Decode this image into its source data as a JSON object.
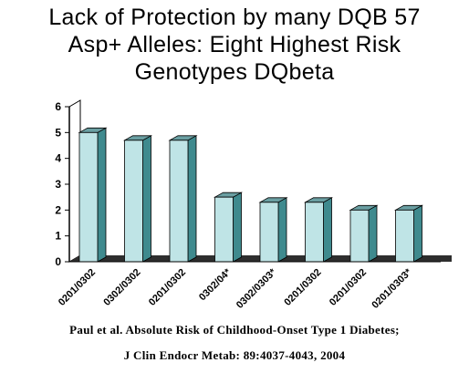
{
  "chart_data": {
    "type": "bar",
    "title_lines": [
      "Lack of Protection by many DQB 57",
      "Asp+ Alleles: Eight Highest Risk",
      "Genotypes DQbeta"
    ],
    "categories": [
      "0201/0302",
      "0302/0302",
      "0201/0302",
      "0302/04*",
      "0302/0303*",
      "0201/0302",
      "0201/0302",
      "0201/0303*"
    ],
    "values": [
      5.0,
      4.7,
      4.7,
      2.5,
      2.3,
      2.3,
      2.0,
      2.0
    ],
    "ylim": [
      0,
      6
    ],
    "yticks": [
      "0",
      "1",
      "2",
      "3",
      "4",
      "5",
      "6"
    ],
    "grid": false,
    "legend": "none",
    "colors": {
      "bar_front": "#bfe4e6",
      "bar_side": "#3f8a8e",
      "bar_top": "#6a9fa2",
      "floor": "#2e2e2e"
    }
  },
  "citation": {
    "line1": "Paul et al. Absolute Risk of Childhood-Onset Type 1 Diabetes;",
    "line2": "J Clin Endocr Metab: 89:4037-4043, 2004"
  }
}
